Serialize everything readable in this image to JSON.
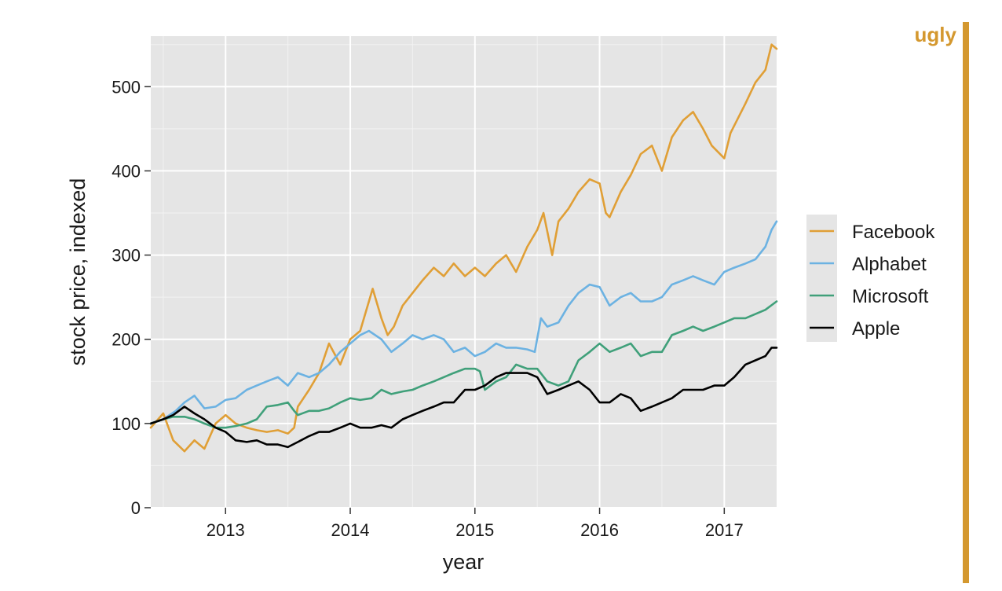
{
  "badge": {
    "label": "ugly",
    "color": "#d4982f"
  },
  "chart_data": {
    "type": "line",
    "title": "",
    "xlabel": "year",
    "ylabel": "stock price, indexed",
    "x_tick_labels": [
      "2013",
      "2014",
      "2015",
      "2016",
      "2017"
    ],
    "y_tick_labels": [
      "0",
      "100",
      "200",
      "300",
      "400",
      "500"
    ],
    "xlim": [
      2012.4,
      2017.42
    ],
    "ylim": [
      0,
      560
    ],
    "grid": true,
    "legend_position": "right",
    "background": "#e5e5e5",
    "series": [
      {
        "name": "Facebook",
        "color": "#e09f36",
        "points": [
          [
            2012.4,
            95
          ],
          [
            2012.5,
            112
          ],
          [
            2012.58,
            80
          ],
          [
            2012.67,
            67
          ],
          [
            2012.75,
            80
          ],
          [
            2012.83,
            70
          ],
          [
            2012.92,
            100
          ],
          [
            2013.0,
            110
          ],
          [
            2013.08,
            100
          ],
          [
            2013.17,
            95
          ],
          [
            2013.25,
            92
          ],
          [
            2013.33,
            90
          ],
          [
            2013.42,
            92
          ],
          [
            2013.5,
            88
          ],
          [
            2013.55,
            95
          ],
          [
            2013.58,
            120
          ],
          [
            2013.67,
            140
          ],
          [
            2013.75,
            160
          ],
          [
            2013.83,
            195
          ],
          [
            2013.92,
            170
          ],
          [
            2014.0,
            200
          ],
          [
            2014.08,
            210
          ],
          [
            2014.15,
            245
          ],
          [
            2014.18,
            260
          ],
          [
            2014.25,
            225
          ],
          [
            2014.3,
            205
          ],
          [
            2014.35,
            215
          ],
          [
            2014.42,
            240
          ],
          [
            2014.5,
            255
          ],
          [
            2014.58,
            270
          ],
          [
            2014.67,
            285
          ],
          [
            2014.75,
            275
          ],
          [
            2014.83,
            290
          ],
          [
            2014.92,
            275
          ],
          [
            2015.0,
            285
          ],
          [
            2015.08,
            275
          ],
          [
            2015.17,
            290
          ],
          [
            2015.25,
            300
          ],
          [
            2015.33,
            280
          ],
          [
            2015.42,
            310
          ],
          [
            2015.5,
            330
          ],
          [
            2015.55,
            350
          ],
          [
            2015.62,
            300
          ],
          [
            2015.67,
            340
          ],
          [
            2015.75,
            355
          ],
          [
            2015.83,
            375
          ],
          [
            2015.92,
            390
          ],
          [
            2016.0,
            385
          ],
          [
            2016.05,
            350
          ],
          [
            2016.08,
            345
          ],
          [
            2016.17,
            375
          ],
          [
            2016.25,
            395
          ],
          [
            2016.33,
            420
          ],
          [
            2016.42,
            430
          ],
          [
            2016.5,
            400
          ],
          [
            2016.58,
            440
          ],
          [
            2016.67,
            460
          ],
          [
            2016.75,
            470
          ],
          [
            2016.83,
            450
          ],
          [
            2016.9,
            430
          ],
          [
            2017.0,
            415
          ],
          [
            2017.05,
            445
          ],
          [
            2017.17,
            480
          ],
          [
            2017.25,
            505
          ],
          [
            2017.33,
            520
          ],
          [
            2017.38,
            550
          ],
          [
            2017.42,
            545
          ]
        ]
      },
      {
        "name": "Alphabet",
        "color": "#6cb2e2",
        "points": [
          [
            2012.4,
            100
          ],
          [
            2012.5,
            105
          ],
          [
            2012.6,
            115
          ],
          [
            2012.67,
            125
          ],
          [
            2012.75,
            133
          ],
          [
            2012.83,
            118
          ],
          [
            2012.92,
            120
          ],
          [
            2013.0,
            128
          ],
          [
            2013.08,
            130
          ],
          [
            2013.17,
            140
          ],
          [
            2013.25,
            145
          ],
          [
            2013.33,
            150
          ],
          [
            2013.42,
            155
          ],
          [
            2013.5,
            145
          ],
          [
            2013.58,
            160
          ],
          [
            2013.67,
            155
          ],
          [
            2013.75,
            160
          ],
          [
            2013.83,
            170
          ],
          [
            2013.92,
            185
          ],
          [
            2014.0,
            195
          ],
          [
            2014.08,
            205
          ],
          [
            2014.15,
            210
          ],
          [
            2014.25,
            200
          ],
          [
            2014.33,
            185
          ],
          [
            2014.42,
            195
          ],
          [
            2014.5,
            205
          ],
          [
            2014.58,
            200
          ],
          [
            2014.67,
            205
          ],
          [
            2014.75,
            200
          ],
          [
            2014.83,
            185
          ],
          [
            2014.92,
            190
          ],
          [
            2015.0,
            180
          ],
          [
            2015.08,
            185
          ],
          [
            2015.17,
            195
          ],
          [
            2015.25,
            190
          ],
          [
            2015.33,
            190
          ],
          [
            2015.42,
            188
          ],
          [
            2015.48,
            185
          ],
          [
            2015.53,
            225
          ],
          [
            2015.58,
            215
          ],
          [
            2015.67,
            220
          ],
          [
            2015.75,
            240
          ],
          [
            2015.83,
            255
          ],
          [
            2015.92,
            265
          ],
          [
            2016.0,
            262
          ],
          [
            2016.08,
            240
          ],
          [
            2016.17,
            250
          ],
          [
            2016.25,
            255
          ],
          [
            2016.33,
            245
          ],
          [
            2016.42,
            245
          ],
          [
            2016.5,
            250
          ],
          [
            2016.58,
            265
          ],
          [
            2016.67,
            270
          ],
          [
            2016.75,
            275
          ],
          [
            2016.83,
            270
          ],
          [
            2016.92,
            265
          ],
          [
            2017.0,
            280
          ],
          [
            2017.08,
            285
          ],
          [
            2017.17,
            290
          ],
          [
            2017.25,
            295
          ],
          [
            2017.33,
            310
          ],
          [
            2017.38,
            330
          ],
          [
            2017.42,
            340
          ]
        ]
      },
      {
        "name": "Microsoft",
        "color": "#40a07a",
        "points": [
          [
            2012.4,
            100
          ],
          [
            2012.5,
            105
          ],
          [
            2012.58,
            108
          ],
          [
            2012.67,
            108
          ],
          [
            2012.75,
            105
          ],
          [
            2012.83,
            100
          ],
          [
            2012.92,
            95
          ],
          [
            2013.0,
            95
          ],
          [
            2013.08,
            97
          ],
          [
            2013.17,
            100
          ],
          [
            2013.25,
            105
          ],
          [
            2013.33,
            120
          ],
          [
            2013.42,
            122
          ],
          [
            2013.5,
            125
          ],
          [
            2013.55,
            115
          ],
          [
            2013.58,
            110
          ],
          [
            2013.67,
            115
          ],
          [
            2013.75,
            115
          ],
          [
            2013.83,
            118
          ],
          [
            2013.92,
            125
          ],
          [
            2014.0,
            130
          ],
          [
            2014.08,
            128
          ],
          [
            2014.17,
            130
          ],
          [
            2014.25,
            140
          ],
          [
            2014.33,
            135
          ],
          [
            2014.42,
            138
          ],
          [
            2014.5,
            140
          ],
          [
            2014.58,
            145
          ],
          [
            2014.67,
            150
          ],
          [
            2014.75,
            155
          ],
          [
            2014.83,
            160
          ],
          [
            2014.92,
            165
          ],
          [
            2015.0,
            165
          ],
          [
            2015.04,
            162
          ],
          [
            2015.08,
            140
          ],
          [
            2015.17,
            150
          ],
          [
            2015.25,
            155
          ],
          [
            2015.33,
            170
          ],
          [
            2015.42,
            165
          ],
          [
            2015.5,
            165
          ],
          [
            2015.58,
            150
          ],
          [
            2015.67,
            145
          ],
          [
            2015.75,
            150
          ],
          [
            2015.83,
            175
          ],
          [
            2015.92,
            185
          ],
          [
            2016.0,
            195
          ],
          [
            2016.08,
            185
          ],
          [
            2016.17,
            190
          ],
          [
            2016.25,
            195
          ],
          [
            2016.33,
            180
          ],
          [
            2016.42,
            185
          ],
          [
            2016.5,
            185
          ],
          [
            2016.58,
            205
          ],
          [
            2016.67,
            210
          ],
          [
            2016.75,
            215
          ],
          [
            2016.83,
            210
          ],
          [
            2016.92,
            215
          ],
          [
            2017.0,
            220
          ],
          [
            2017.08,
            225
          ],
          [
            2017.17,
            225
          ],
          [
            2017.25,
            230
          ],
          [
            2017.33,
            235
          ],
          [
            2017.42,
            245
          ]
        ]
      },
      {
        "name": "Apple",
        "color": "#000000",
        "points": [
          [
            2012.4,
            100
          ],
          [
            2012.5,
            105
          ],
          [
            2012.58,
            110
          ],
          [
            2012.67,
            120
          ],
          [
            2012.75,
            112
          ],
          [
            2012.83,
            105
          ],
          [
            2012.92,
            95
          ],
          [
            2013.0,
            90
          ],
          [
            2013.08,
            80
          ],
          [
            2013.17,
            78
          ],
          [
            2013.25,
            80
          ],
          [
            2013.33,
            75
          ],
          [
            2013.42,
            75
          ],
          [
            2013.5,
            72
          ],
          [
            2013.58,
            78
          ],
          [
            2013.67,
            85
          ],
          [
            2013.75,
            90
          ],
          [
            2013.83,
            90
          ],
          [
            2013.92,
            95
          ],
          [
            2014.0,
            100
          ],
          [
            2014.08,
            95
          ],
          [
            2014.17,
            95
          ],
          [
            2014.25,
            98
          ],
          [
            2014.33,
            95
          ],
          [
            2014.42,
            105
          ],
          [
            2014.5,
            110
          ],
          [
            2014.58,
            115
          ],
          [
            2014.67,
            120
          ],
          [
            2014.75,
            125
          ],
          [
            2014.83,
            125
          ],
          [
            2014.92,
            140
          ],
          [
            2015.0,
            140
          ],
          [
            2015.08,
            145
          ],
          [
            2015.17,
            155
          ],
          [
            2015.25,
            160
          ],
          [
            2015.33,
            160
          ],
          [
            2015.42,
            160
          ],
          [
            2015.5,
            155
          ],
          [
            2015.58,
            135
          ],
          [
            2015.67,
            140
          ],
          [
            2015.75,
            145
          ],
          [
            2015.83,
            150
          ],
          [
            2015.92,
            140
          ],
          [
            2016.0,
            125
          ],
          [
            2016.08,
            125
          ],
          [
            2016.17,
            135
          ],
          [
            2016.25,
            130
          ],
          [
            2016.33,
            115
          ],
          [
            2016.42,
            120
          ],
          [
            2016.5,
            125
          ],
          [
            2016.58,
            130
          ],
          [
            2016.67,
            140
          ],
          [
            2016.75,
            140
          ],
          [
            2016.83,
            140
          ],
          [
            2016.92,
            145
          ],
          [
            2017.0,
            145
          ],
          [
            2017.08,
            155
          ],
          [
            2017.17,
            170
          ],
          [
            2017.25,
            175
          ],
          [
            2017.33,
            180
          ],
          [
            2017.38,
            190
          ],
          [
            2017.42,
            190
          ]
        ]
      }
    ]
  }
}
